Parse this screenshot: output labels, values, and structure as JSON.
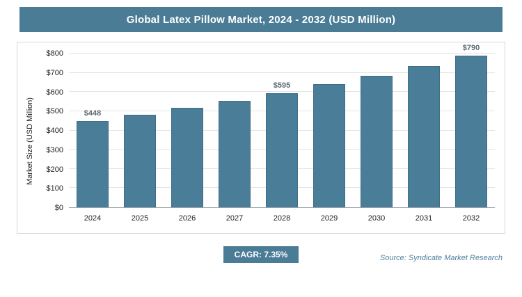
{
  "header": {
    "title": "Global Latex Pillow Market, 2024 - 2032 (USD Million)"
  },
  "chart_data": {
    "type": "bar",
    "title": "Global Latex Pillow Market, 2024 - 2032 (USD Million)",
    "categories": [
      "2024",
      "2025",
      "2026",
      "2027",
      "2028",
      "2029",
      "2030",
      "2031",
      "2032"
    ],
    "values": [
      448,
      481,
      516,
      554,
      595,
      639,
      686,
      736,
      790
    ],
    "data_labels": [
      "$448",
      "",
      "",
      "",
      "$595",
      "",
      "",
      "",
      "$790"
    ],
    "xlabel": "",
    "ylabel": "Market Size (USD Million)",
    "ylim": [
      0,
      800
    ],
    "ytick_step": 100,
    "ytick_prefix": "$",
    "grid": true,
    "legend": "none",
    "bar_color": "#4a7d98"
  },
  "footer": {
    "cagr_label": "CAGR: 7.35%",
    "source": "Source: Syndicate Market Research"
  },
  "colors": {
    "accent": "#4a7c96",
    "bar": "#4a7d98",
    "gridline": "#e1e4e6",
    "label_text": "#5f6b73"
  }
}
